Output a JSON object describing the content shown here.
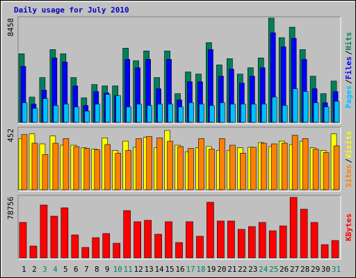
{
  "chart_data": [
    {
      "type": "bar",
      "title": "Daily usage for July 2010",
      "title_color": "#0000c0",
      "categories": [
        "1",
        "2",
        "3",
        "4",
        "5",
        "6",
        "7",
        "8",
        "9",
        "10",
        "11",
        "12",
        "13",
        "14",
        "15",
        "16",
        "17",
        "18",
        "19",
        "20",
        "21",
        "22",
        "23",
        "24",
        "25",
        "26",
        "27",
        "28",
        "29",
        "30",
        "31"
      ],
      "category_colors": [
        "#000000",
        "#000000",
        "#00805c",
        "#00805c",
        "#000000",
        "#000000",
        "#000000",
        "#000000",
        "#000000",
        "#00805c",
        "#00805c",
        "#000000",
        "#000000",
        "#000000",
        "#000000",
        "#000000",
        "#00805c",
        "#00805c",
        "#000000",
        "#000000",
        "#000000",
        "#000000",
        "#000000",
        "#00805c",
        "#00805c",
        "#000000",
        "#000000",
        "#000000",
        "#000000",
        "#000000",
        "#00805c"
      ],
      "legend_separator": "/",
      "ylim": [
        0,
        8458
      ],
      "yticks": [
        8458
      ],
      "series": [
        {
          "name": "Hits",
          "color": "#00805c",
          "values": [
            5563,
            2043,
            3633,
            5903,
            5563,
            3633,
            1987,
            3065,
            2952,
            2952,
            6017,
            4995,
            5790,
            3633,
            5790,
            2327,
            4087,
            3916,
            6471,
            4654,
            5165,
            3916,
            4427,
            5222,
            8458,
            6868,
            7719,
            5903,
            3746,
            2327,
            3349
          ]
        },
        {
          "name": "Files",
          "color": "#0000ff",
          "values": [
            4541,
            1476,
            2611,
            5222,
            4881,
            2952,
            1362,
            2497,
            2384,
            2157,
            5108,
            4427,
            5108,
            2724,
            5108,
            1816,
            3292,
            3292,
            5903,
            3746,
            4314,
            3179,
            3746,
            4427,
            7265,
            6130,
            6811,
            5108,
            2724,
            1589,
            2497
          ]
        },
        {
          "name": "Pages",
          "color": "#00c0ff",
          "values": [
            1589,
            1135,
            1930,
            1362,
            1476,
            1249,
            908,
            1476,
            2270,
            2157,
            1249,
            1476,
            1362,
            1476,
            1476,
            1249,
            1589,
            1476,
            1362,
            1589,
            1476,
            1476,
            1476,
            1476,
            2043,
            1362,
            2724,
            2497,
            1589,
            1249,
            1703
          ]
        }
      ]
    },
    {
      "type": "bar",
      "legend_separator": "/",
      "ylim": [
        0,
        452
      ],
      "yticks": [
        452
      ],
      "series": [
        {
          "name": "Visits",
          "color": "#ffff00",
          "values": [
            378,
            413,
            339,
            398,
            329,
            329,
            310,
            300,
            383,
            290,
            359,
            314,
            388,
            310,
            437,
            329,
            280,
            310,
            319,
            290,
            290,
            310,
            314,
            349,
            319,
            359,
            334,
            359,
            310,
            290,
            413
          ]
        },
        {
          "name": "Sites",
          "color": "#ff8000",
          "values": [
            408,
            344,
            260,
            344,
            378,
            319,
            305,
            295,
            334,
            270,
            290,
            378,
            393,
            383,
            359,
            319,
            305,
            378,
            300,
            378,
            329,
            270,
            314,
            344,
            339,
            344,
            403,
            378,
            300,
            275,
            324
          ]
        }
      ]
    },
    {
      "type": "bar",
      "ylim": [
        0,
        78756
      ],
      "yticks": [
        78756
      ],
      "series": [
        {
          "name": "KBytes",
          "color": "#ff0000",
          "values": [
            45645,
            15215,
            68020,
            53700,
            64440,
            29535,
            13425,
            25955,
            31325,
            18795,
            60860,
            46540,
            48330,
            30430,
            46540,
            19690,
            46540,
            27745,
            71600,
            47435,
            47435,
            36695,
            40275,
            45645,
            34905,
            41170,
            77865,
            62650,
            45645,
            17005,
            22375
          ]
        }
      ]
    }
  ]
}
